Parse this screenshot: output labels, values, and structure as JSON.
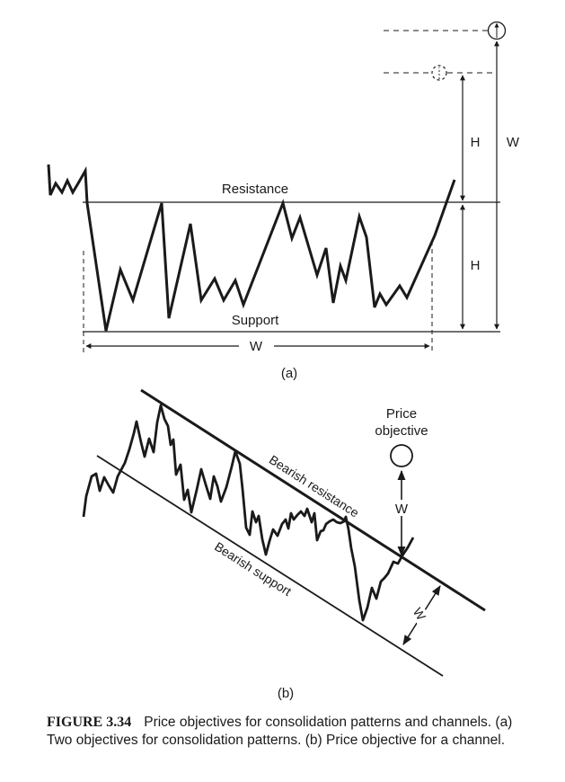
{
  "panel_a": {
    "resistance_label": "Resistance",
    "support_label": "Support",
    "width_label": "W",
    "height_label_upper": "H",
    "height_label_lower": "H",
    "full_height_label": "W",
    "panel_label": "(a)"
  },
  "panel_b": {
    "objective_line1": "Price",
    "objective_line2": "objective",
    "resistance_label": "Bearish resistance",
    "support_label": "Bearish support",
    "objective_arrow_label": "W",
    "channel_width_label": "W",
    "panel_label": "(b)"
  },
  "caption": {
    "figure_label": "FIGURE 3.34",
    "text": "Price objectives for consolidation patterns and channels. (a) Two objectives for consolidation patterns. (b) Price objective for a channel."
  }
}
